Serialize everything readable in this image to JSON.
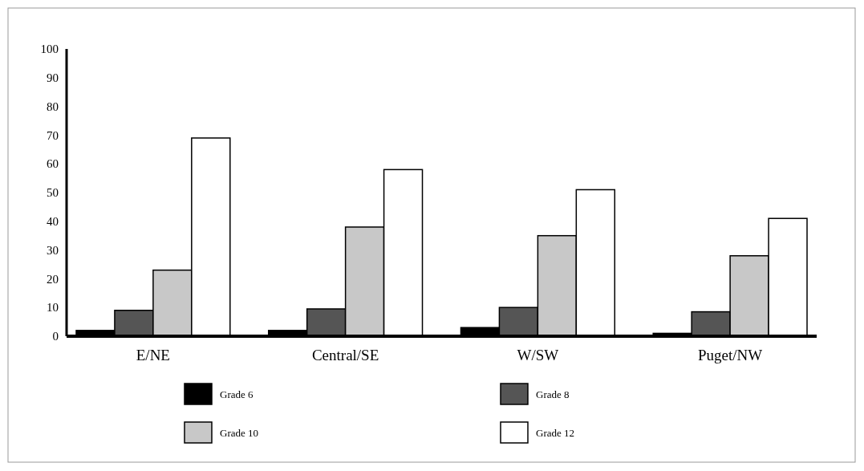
{
  "chart_data": {
    "type": "bar",
    "categories": [
      "E/NE",
      "Central/SE",
      "W/SW",
      "Puget/NW"
    ],
    "series": [
      {
        "name": "Grade 6",
        "color": "#000000",
        "values": [
          2,
          2,
          3,
          1
        ]
      },
      {
        "name": "Grade 8",
        "color": "#555555",
        "values": [
          9,
          9.5,
          10,
          8.5
        ]
      },
      {
        "name": "Grade 10",
        "color": "#c8c8c8",
        "values": [
          23,
          38,
          35,
          28
        ]
      },
      {
        "name": "Grade 12",
        "color": "#ffffff",
        "values": [
          69,
          58,
          51,
          41
        ]
      }
    ],
    "ylim": [
      0,
      100
    ],
    "yticks": [
      0,
      10,
      20,
      30,
      40,
      50,
      60,
      70,
      80,
      90,
      100
    ],
    "grid": false,
    "legend": "bottom"
  }
}
